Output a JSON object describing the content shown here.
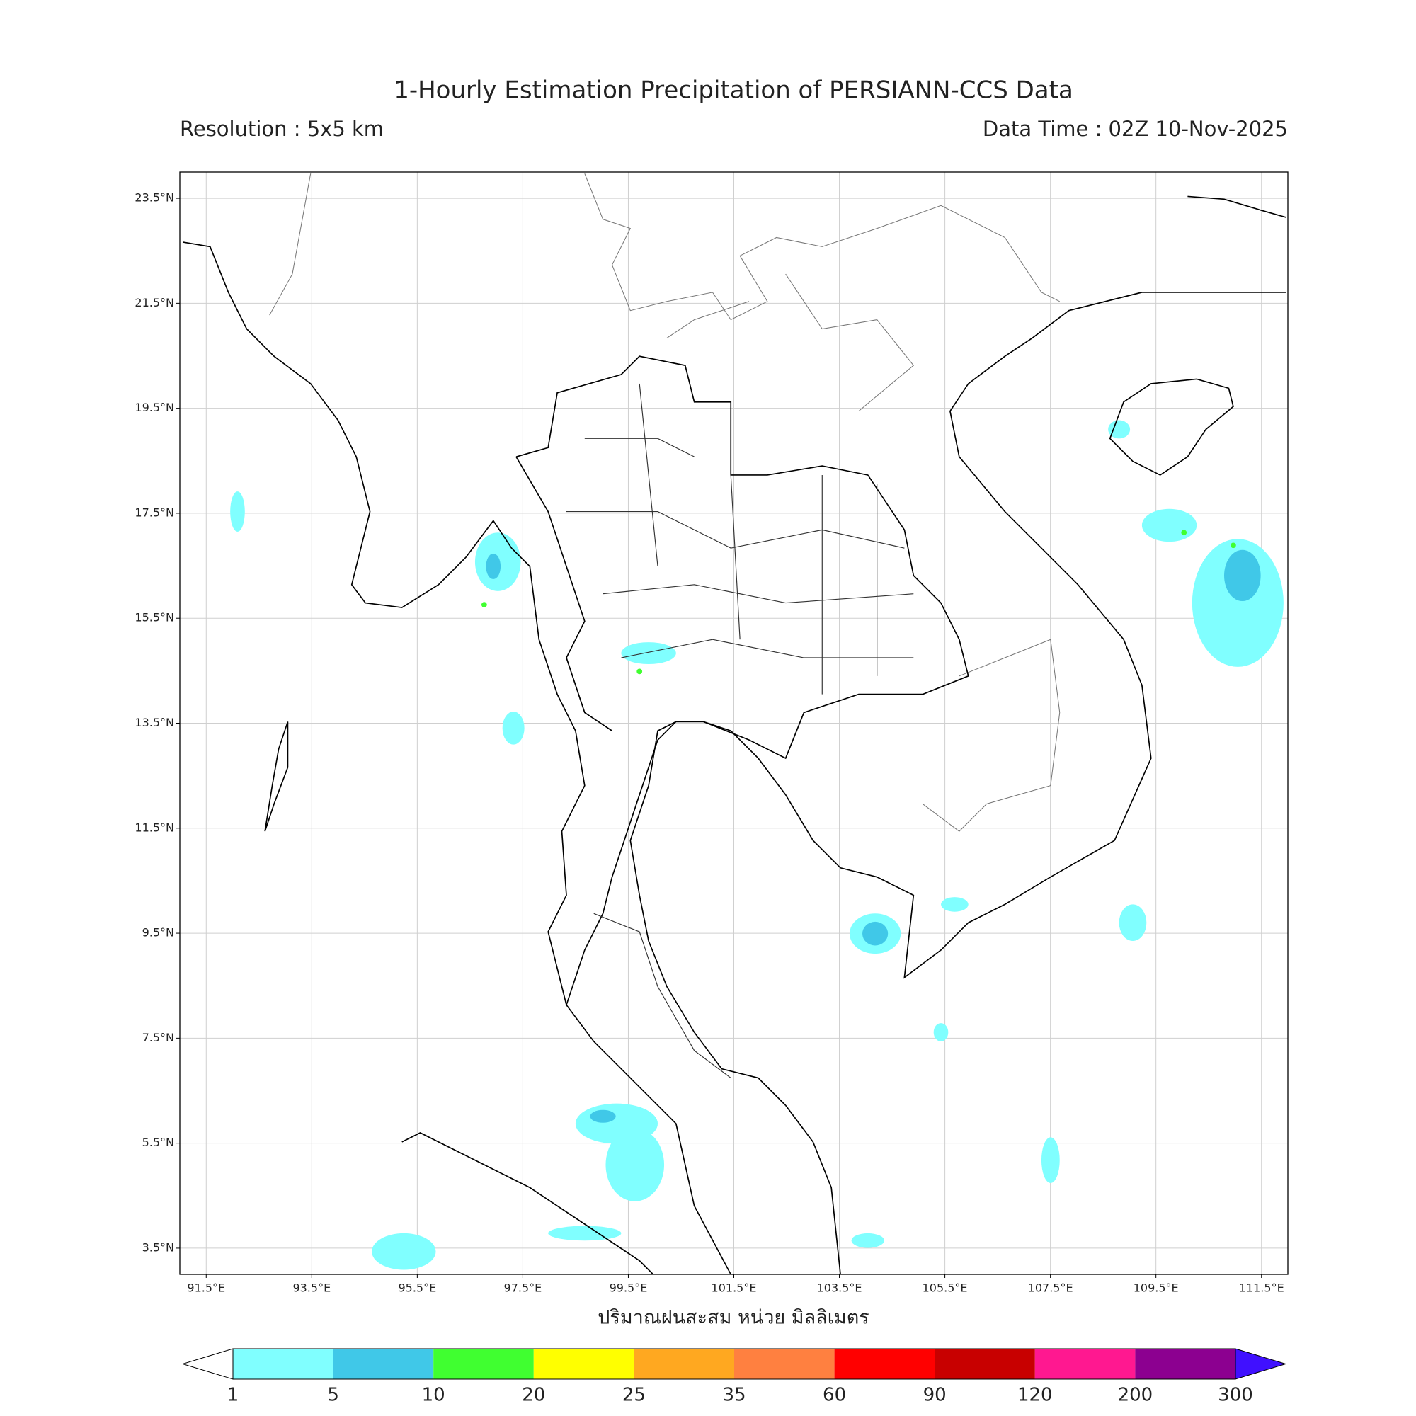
{
  "title": "1-Hourly Estimation Precipitation of PERSIANN-CCS Data",
  "subtitle_left": "Resolution : 5x5 km",
  "subtitle_right": "Data Time : 02Z 10-Nov-2025",
  "map": {
    "lon_range": [
      91,
      112
    ],
    "lat_range": [
      3,
      24
    ],
    "lon_ticks": [
      {
        "value": 91.5,
        "label": "91.5°E"
      },
      {
        "value": 93.5,
        "label": "93.5°E"
      },
      {
        "value": 95.5,
        "label": "95.5°E"
      },
      {
        "value": 97.5,
        "label": "97.5°E"
      },
      {
        "value": 99.5,
        "label": "99.5°E"
      },
      {
        "value": 101.5,
        "label": "101.5°E"
      },
      {
        "value": 103.5,
        "label": "103.5°E"
      },
      {
        "value": 105.5,
        "label": "105.5°E"
      },
      {
        "value": 107.5,
        "label": "107.5°E"
      },
      {
        "value": 109.5,
        "label": "109.5°E"
      },
      {
        "value": 111.5,
        "label": "111.5°E"
      }
    ],
    "lat_ticks": [
      {
        "value": 23.5,
        "label": "23.5°N"
      },
      {
        "value": 21.5,
        "label": "21.5°N"
      },
      {
        "value": 19.5,
        "label": "19.5°N"
      },
      {
        "value": 17.5,
        "label": "17.5°N"
      },
      {
        "value": 15.5,
        "label": "15.5°N"
      },
      {
        "value": 13.5,
        "label": "13.5°N"
      },
      {
        "value": 11.5,
        "label": "11.5°N"
      },
      {
        "value": 9.5,
        "label": "9.5°N"
      },
      {
        "value": 7.5,
        "label": "7.5°N"
      },
      {
        "value": 5.5,
        "label": "5.5°N"
      },
      {
        "value": 3.5,
        "label": "3.5°N"
      }
    ],
    "grid": true
  },
  "colorbar": {
    "label": "ปริมาณฝนสะสม หน่วย มิลลิเมตร",
    "levels": [
      1,
      5,
      10,
      20,
      25,
      35,
      60,
      90,
      120,
      200,
      300
    ],
    "colors": [
      "#80ffff",
      "#40c8e8",
      "#40ff30",
      "#ffff00",
      "#ffa820",
      "#ff8040",
      "#ff0000",
      "#c80000",
      "#ff1890",
      "#8c0090"
    ],
    "under_color": "#ffffff",
    "over_color": "#4010ff"
  }
}
